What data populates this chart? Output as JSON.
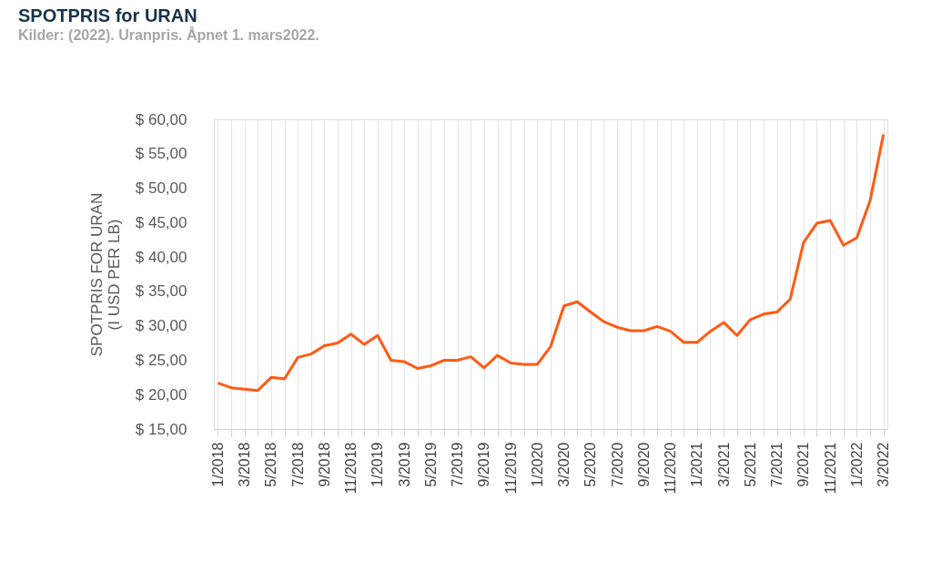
{
  "chart_data": {
    "type": "line",
    "title": "SPOTPRIS for URAN",
    "subtitle": "Kilder: (2022). Uranpris. Åpnet 1. mars2022.",
    "ylabel": "SPOTPRIS FOR URAN\n(I USD PER LB)",
    "categories": [
      "1/2018",
      null,
      "3/2018",
      null,
      "5/2018",
      null,
      "7/2018",
      null,
      "9/2018",
      null,
      "11/2018",
      null,
      "1/2019",
      null,
      "3/2019",
      null,
      "5/2019",
      null,
      "7/2019",
      null,
      "9/2019",
      null,
      "11/2019",
      null,
      "1/2020",
      null,
      "3/2020",
      null,
      "5/2020",
      null,
      "7/2020",
      null,
      "9/2020",
      null,
      "11/2020",
      null,
      "1/2021",
      null,
      "3/2021",
      null,
      "5/2021",
      null,
      "7/2021",
      null,
      "9/2021",
      null,
      "11/2021",
      null,
      "1/2022",
      null,
      "3/2022"
    ],
    "series": [
      {
        "color": "#ff5a14",
        "values": [
          21.7,
          21.0,
          20.8,
          20.6,
          22.5,
          22.3,
          25.4,
          25.9,
          27.1,
          27.5,
          28.8,
          27.3,
          28.6,
          25.0,
          24.8,
          23.8,
          24.2,
          25.0,
          25.0,
          25.5,
          23.9,
          25.7,
          24.6,
          24.4,
          24.4,
          27.0,
          32.9,
          33.5,
          32.0,
          30.6,
          29.8,
          29.3,
          29.3,
          29.9,
          29.2,
          27.6,
          27.6,
          29.2,
          30.5,
          28.6,
          30.9,
          31.7,
          32.0,
          33.9,
          42.1,
          44.9,
          45.3,
          41.7,
          42.8,
          48.2,
          57.8
        ]
      }
    ],
    "ylim": [
      15,
      60
    ],
    "yticks": [
      {
        "value": 15,
        "label": "$ 15,00"
      },
      {
        "value": 20,
        "label": "$ 20,00"
      },
      {
        "value": 25,
        "label": "$ 25,00"
      },
      {
        "value": 30,
        "label": "$ 30,00"
      },
      {
        "value": 35,
        "label": "$ 35,00"
      },
      {
        "value": 40,
        "label": "$ 40,00"
      },
      {
        "value": 45,
        "label": "$ 45,00"
      },
      {
        "value": 50,
        "label": "$ 50,00"
      },
      {
        "value": 55,
        "label": "$ 55,00"
      },
      {
        "value": 60,
        "label": "$ 60,00"
      }
    ],
    "grid": "x",
    "marker": "none",
    "line_style": "solid"
  }
}
